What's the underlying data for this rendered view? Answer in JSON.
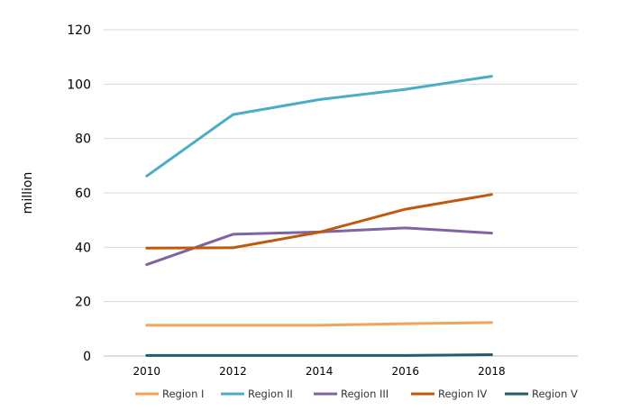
{
  "chart_data": {
    "type": "line",
    "title": "",
    "xlabel": "",
    "ylabel": "million",
    "x": [
      2010,
      2012,
      2014,
      2016,
      2018
    ],
    "xlim": [
      2009,
      2020
    ],
    "ylim": [
      0,
      120
    ],
    "yticks": [
      0,
      20,
      40,
      60,
      80,
      100,
      120
    ],
    "grid": true,
    "legend_position": "bottom",
    "series": [
      {
        "name": "Region I",
        "color": "#F4A15A",
        "values": [
          11.3,
          11.3,
          11.3,
          11.9,
          12.3
        ]
      },
      {
        "name": "Region II",
        "color": "#4BACC6",
        "values": [
          66.2,
          88.8,
          94.3,
          98.1,
          102.9
        ]
      },
      {
        "name": "Region III",
        "color": "#8064A2",
        "values": [
          33.6,
          44.8,
          45.6,
          47.1,
          45.2
        ]
      },
      {
        "name": "Region IV",
        "color": "#C0590E",
        "values": [
          39.7,
          39.8,
          45.5,
          54.0,
          59.4
        ]
      },
      {
        "name": "Region V",
        "color": "#1D5E67",
        "values": [
          0.2,
          0.2,
          0.2,
          0.2,
          0.5
        ]
      }
    ]
  }
}
